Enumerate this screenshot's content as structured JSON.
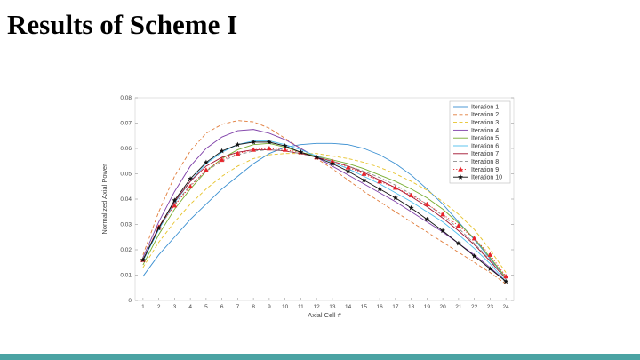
{
  "slide": {
    "title": "Results of Scheme I",
    "accent_color": "#4ba3a3"
  },
  "chart_data": {
    "type": "line",
    "title": "",
    "xlabel": "Axial Cell #",
    "ylabel": "Normalized Axial Power",
    "xlim": [
      0.5,
      24.5
    ],
    "ylim": [
      0,
      0.08
    ],
    "x_ticks": [
      1,
      2,
      3,
      4,
      5,
      6,
      7,
      8,
      9,
      10,
      11,
      12,
      13,
      14,
      15,
      16,
      17,
      18,
      19,
      20,
      21,
      22,
      23,
      24
    ],
    "y_ticks": [
      "0",
      "0.01",
      "0.02",
      "0.03",
      "0.04",
      "0.05",
      "0.06",
      "0.07",
      "0.08"
    ],
    "legend_position": "top-right",
    "grid": false,
    "x": [
      1,
      2,
      3,
      4,
      5,
      6,
      7,
      8,
      9,
      10,
      11,
      12,
      13,
      14,
      15,
      16,
      17,
      18,
      19,
      20,
      21,
      22,
      23,
      24
    ],
    "series": [
      {
        "name": "Iteration 1",
        "color": "#3a8fd1",
        "dash": "solid",
        "marker": "none",
        "values": [
          0.0095,
          0.018,
          0.025,
          0.032,
          0.038,
          0.044,
          0.049,
          0.054,
          0.058,
          0.0605,
          0.0615,
          0.062,
          0.062,
          0.0615,
          0.06,
          0.0575,
          0.054,
          0.0495,
          0.044,
          0.038,
          0.031,
          0.024,
          0.0165,
          0.009
        ]
      },
      {
        "name": "Iteration 2",
        "color": "#e07b39",
        "dash": "dashed",
        "marker": "none",
        "values": [
          0.018,
          0.035,
          0.049,
          0.059,
          0.066,
          0.0695,
          0.071,
          0.0705,
          0.068,
          0.064,
          0.06,
          0.056,
          0.052,
          0.0475,
          0.043,
          0.039,
          0.035,
          0.031,
          0.027,
          0.023,
          0.019,
          0.015,
          0.011,
          0.0065
        ]
      },
      {
        "name": "Iteration 3",
        "color": "#e6c229",
        "dash": "dashed",
        "marker": "none",
        "values": [
          0.013,
          0.023,
          0.031,
          0.038,
          0.044,
          0.049,
          0.053,
          0.056,
          0.0575,
          0.058,
          0.058,
          0.058,
          0.057,
          0.056,
          0.0545,
          0.0525,
          0.05,
          0.047,
          0.0435,
          0.039,
          0.034,
          0.028,
          0.02,
          0.011
        ]
      },
      {
        "name": "Iteration 4",
        "color": "#7e3fa8",
        "dash": "solid",
        "marker": "none",
        "values": [
          0.017,
          0.031,
          0.043,
          0.053,
          0.06,
          0.0645,
          0.067,
          0.0675,
          0.066,
          0.0635,
          0.06,
          0.0565,
          0.053,
          0.0495,
          0.046,
          0.0425,
          0.039,
          0.035,
          0.031,
          0.027,
          0.0225,
          0.018,
          0.013,
          0.0075
        ]
      },
      {
        "name": "Iteration 5",
        "color": "#77ac30",
        "dash": "solid",
        "marker": "none",
        "values": [
          0.014,
          0.026,
          0.036,
          0.044,
          0.051,
          0.056,
          0.0595,
          0.0615,
          0.062,
          0.0605,
          0.0585,
          0.057,
          0.0555,
          0.054,
          0.052,
          0.0495,
          0.047,
          0.044,
          0.0405,
          0.036,
          0.0305,
          0.0245,
          0.017,
          0.009
        ]
      },
      {
        "name": "Iteration 6",
        "color": "#4dbeee",
        "dash": "solid",
        "marker": "none",
        "values": [
          0.0155,
          0.028,
          0.0385,
          0.047,
          0.054,
          0.0585,
          0.0615,
          0.063,
          0.063,
          0.0615,
          0.0595,
          0.057,
          0.0545,
          0.052,
          0.049,
          0.046,
          0.0425,
          0.039,
          0.035,
          0.031,
          0.026,
          0.0205,
          0.0145,
          0.0075
        ]
      },
      {
        "name": "Iteration 7",
        "color": "#a2142f",
        "dash": "solid",
        "marker": "none",
        "values": [
          0.016,
          0.029,
          0.039,
          0.047,
          0.053,
          0.0565,
          0.0585,
          0.0595,
          0.0595,
          0.059,
          0.058,
          0.0565,
          0.055,
          0.053,
          0.0505,
          0.0475,
          0.0445,
          0.041,
          0.037,
          0.0325,
          0.0275,
          0.022,
          0.0155,
          0.0085
        ]
      },
      {
        "name": "Iteration 8",
        "color": "#8c8c8c",
        "dash": "dashed",
        "marker": "none",
        "values": [
          0.0165,
          0.0285,
          0.038,
          0.0455,
          0.051,
          0.055,
          0.0575,
          0.059,
          0.0595,
          0.059,
          0.058,
          0.0565,
          0.055,
          0.053,
          0.051,
          0.0485,
          0.0455,
          0.042,
          0.038,
          0.0335,
          0.0285,
          0.0225,
          0.016,
          0.0085
        ]
      },
      {
        "name": "Iteration 9",
        "color": "#e8242b",
        "dash": "dotted",
        "marker": "triangle",
        "values": [
          0.016,
          0.029,
          0.0375,
          0.045,
          0.0515,
          0.0555,
          0.058,
          0.0595,
          0.06,
          0.0595,
          0.0585,
          0.0565,
          0.055,
          0.0525,
          0.05,
          0.047,
          0.0445,
          0.0415,
          0.038,
          0.034,
          0.0295,
          0.0245,
          0.018,
          0.0095
        ]
      },
      {
        "name": "Iteration 10",
        "color": "#111111",
        "dash": "solid",
        "marker": "star",
        "values": [
          0.016,
          0.0285,
          0.0395,
          0.048,
          0.0545,
          0.059,
          0.0615,
          0.0625,
          0.0625,
          0.061,
          0.0585,
          0.0565,
          0.054,
          0.051,
          0.0475,
          0.044,
          0.0405,
          0.0365,
          0.032,
          0.0275,
          0.0225,
          0.0175,
          0.0125,
          0.0075
        ]
      }
    ]
  }
}
